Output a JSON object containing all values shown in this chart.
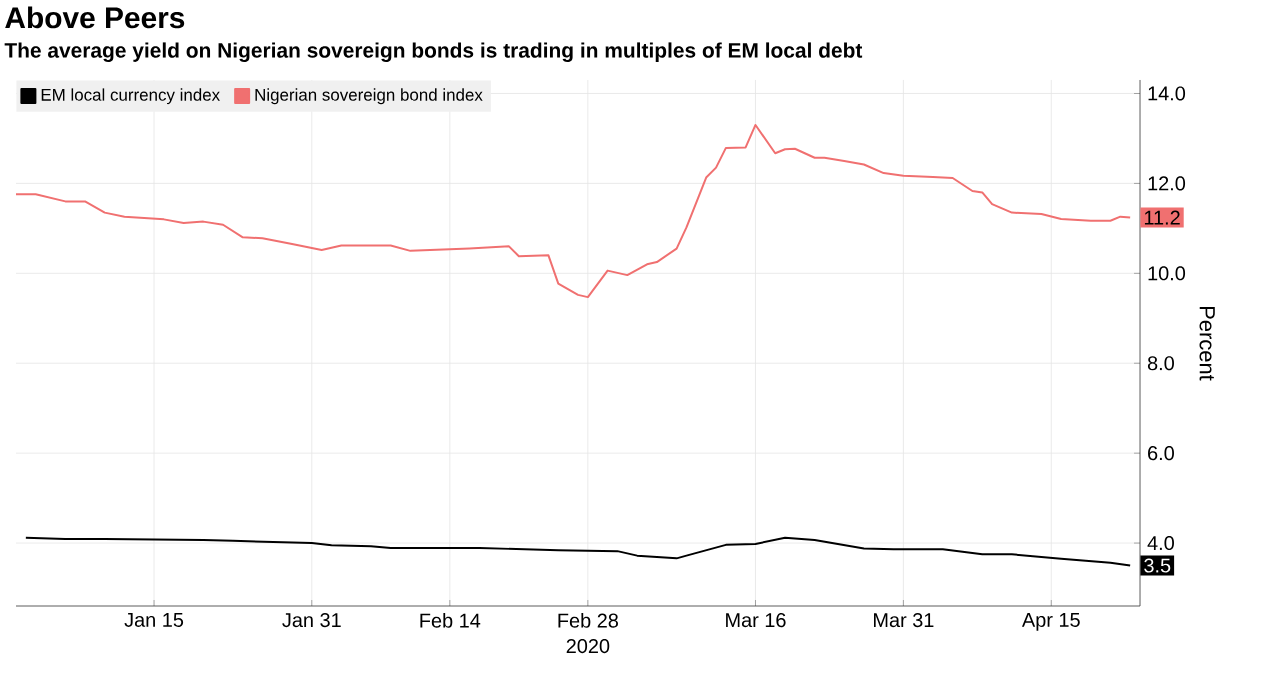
{
  "chart_data": {
    "type": "line",
    "title": "Above Peers",
    "subtitle": "The average yield on Nigerian sovereign bonds is trading in multiples of EM local debt",
    "xlabel": "2020",
    "ylabel": "Percent",
    "xlim": [
      "2020-01-01",
      "2020-04-24"
    ],
    "ylim": [
      2.6,
      14.3
    ],
    "xticks": [
      {
        "value": "2020-01-15",
        "label": "Jan 15"
      },
      {
        "value": "2020-01-31",
        "label": "Jan 31"
      },
      {
        "value": "2020-02-14",
        "label": "Feb 14"
      },
      {
        "value": "2020-02-28",
        "label": "Feb 28"
      },
      {
        "value": "2020-03-16",
        "label": "Mar 16"
      },
      {
        "value": "2020-03-31",
        "label": "Mar 31"
      },
      {
        "value": "2020-04-15",
        "label": "Apr 15"
      }
    ],
    "yticks": [
      {
        "value": 4,
        "label": "4.0"
      },
      {
        "value": 6,
        "label": "6.0"
      },
      {
        "value": 8,
        "label": "8.0"
      },
      {
        "value": 10,
        "label": "10.0"
      },
      {
        "value": 12,
        "label": "12.0"
      },
      {
        "value": 14,
        "label": "14.0"
      }
    ],
    "grid": true,
    "legend": "top left",
    "marker": "none",
    "line_style": "solid",
    "series": [
      {
        "name": "EM local currency index",
        "color": "#000000",
        "x": [
          "2020-01-02",
          "2020-01-06",
          "2020-01-10",
          "2020-01-20",
          "2020-01-23",
          "2020-01-31",
          "2020-02-02",
          "2020-02-06",
          "2020-02-08",
          "2020-02-17",
          "2020-02-25",
          "2020-03-02",
          "2020-03-04",
          "2020-03-08",
          "2020-03-09",
          "2020-03-13",
          "2020-03-16",
          "2020-03-19",
          "2020-03-22",
          "2020-03-27",
          "2020-03-30",
          "2020-04-04",
          "2020-04-08",
          "2020-04-11",
          "2020-04-16",
          "2020-04-21",
          "2020-04-23"
        ],
        "values": [
          4.12,
          4.09,
          4.09,
          4.07,
          4.05,
          4.0,
          3.95,
          3.93,
          3.89,
          3.89,
          3.84,
          3.82,
          3.72,
          3.66,
          3.72,
          3.96,
          3.98,
          4.12,
          4.07,
          3.88,
          3.86,
          3.86,
          3.75,
          3.75,
          3.65,
          3.56,
          3.5
        ],
        "value_labels": [
          null,
          null,
          null,
          null,
          null,
          null,
          null,
          null,
          null,
          null,
          null,
          null,
          null,
          null,
          null,
          null,
          null,
          null,
          null,
          null,
          null,
          null,
          null,
          null,
          null,
          null,
          "3.5"
        ]
      },
      {
        "name": "Nigerian sovereign bond index",
        "color": "#f07070",
        "x": [
          "2020-01-01",
          "2020-01-03",
          "2020-01-06",
          "2020-01-08",
          "2020-01-10",
          "2020-01-12",
          "2020-01-16",
          "2020-01-18",
          "2020-01-20",
          "2020-01-22",
          "2020-01-24",
          "2020-01-26",
          "2020-01-29",
          "2020-02-01",
          "2020-02-03",
          "2020-02-08",
          "2020-02-10",
          "2020-02-16",
          "2020-02-20",
          "2020-02-21",
          "2020-02-24",
          "2020-02-25",
          "2020-02-27",
          "2020-02-28",
          "2020-03-01",
          "2020-03-03",
          "2020-03-05",
          "2020-03-06",
          "2020-03-08",
          "2020-03-09",
          "2020-03-11",
          "2020-03-12",
          "2020-03-13",
          "2020-03-15",
          "2020-03-16",
          "2020-03-18",
          "2020-03-19",
          "2020-03-20",
          "2020-03-22",
          "2020-03-23",
          "2020-03-25",
          "2020-03-27",
          "2020-03-29",
          "2020-03-31",
          "2020-04-03",
          "2020-04-05",
          "2020-04-07",
          "2020-04-08",
          "2020-04-09",
          "2020-04-11",
          "2020-04-14",
          "2020-04-16",
          "2020-04-19",
          "2020-04-21",
          "2020-04-22",
          "2020-04-23"
        ],
        "values": [
          11.76,
          11.76,
          11.6,
          11.6,
          11.35,
          11.26,
          11.2,
          11.12,
          11.15,
          11.08,
          10.8,
          10.78,
          10.65,
          10.52,
          10.62,
          10.62,
          10.5,
          10.55,
          10.6,
          10.38,
          10.4,
          9.77,
          9.52,
          9.47,
          10.06,
          9.96,
          10.2,
          10.25,
          10.55,
          11.02,
          12.13,
          12.35,
          12.79,
          12.8,
          13.3,
          12.67,
          12.76,
          12.77,
          12.57,
          12.57,
          12.5,
          12.42,
          12.23,
          12.17,
          12.14,
          12.12,
          11.83,
          11.8,
          11.54,
          11.35,
          11.32,
          11.21,
          11.17,
          11.17,
          11.26,
          11.24
        ],
        "value_labels": [
          null,
          null,
          null,
          null,
          null,
          null,
          null,
          null,
          null,
          null,
          null,
          null,
          null,
          null,
          null,
          null,
          null,
          null,
          null,
          null,
          null,
          null,
          null,
          null,
          null,
          null,
          null,
          null,
          null,
          null,
          null,
          null,
          null,
          null,
          null,
          null,
          null,
          null,
          null,
          null,
          null,
          null,
          null,
          null,
          null,
          null,
          null,
          null,
          null,
          null,
          null,
          null,
          null,
          null,
          null,
          "11.2"
        ]
      }
    ]
  }
}
